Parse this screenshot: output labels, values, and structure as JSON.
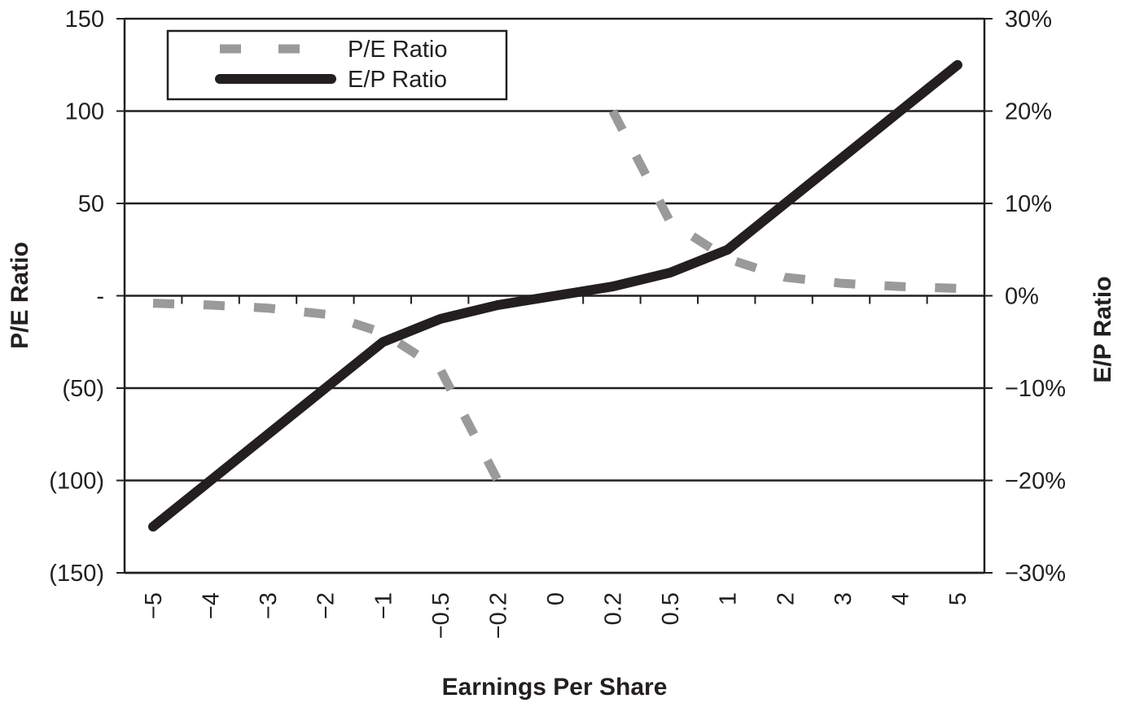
{
  "chart_data": {
    "type": "line",
    "xlabel": "Earnings Per Share",
    "ylabel_left": "P/E Ratio",
    "ylabel_right": "E/P Ratio",
    "categories": [
      "−5",
      "−4",
      "−3",
      "−2",
      "−1",
      "−0.5",
      "−0.2",
      "0",
      "0.2",
      "0.5",
      "1",
      "2",
      "3",
      "4",
      "5"
    ],
    "left_axis": {
      "range": [
        -150,
        150
      ],
      "ticks": [
        150,
        100,
        50,
        0,
        -50,
        -100,
        -150
      ],
      "tick_labels": [
        "150",
        "100",
        "50",
        "-",
        "(50)",
        "(100)",
        "(150)"
      ]
    },
    "right_axis": {
      "range": [
        -0.3,
        0.3
      ],
      "ticks": [
        0.3,
        0.2,
        0.1,
        0,
        -0.1,
        -0.2,
        -0.3
      ],
      "tick_labels": [
        "30%",
        "20%",
        "10%",
        "0%",
        "−10%",
        "−20%",
        "−30%"
      ]
    },
    "grid": "horizontal",
    "legend_position": "top-left",
    "series": [
      {
        "name": "P/E Ratio",
        "axis": "left",
        "style": "dashed",
        "color": "#9a9a9a",
        "values": [
          -4,
          -5,
          -6.7,
          -10,
          -20,
          -40,
          -100,
          null,
          100,
          40,
          20,
          10,
          6.7,
          5,
          4
        ]
      },
      {
        "name": "E/P Ratio",
        "axis": "right",
        "style": "solid",
        "color": "#231f20",
        "values": [
          -0.25,
          -0.2,
          -0.15,
          -0.1,
          -0.05,
          -0.025,
          -0.01,
          0,
          0.01,
          0.025,
          0.05,
          0.1,
          0.15,
          0.2,
          0.25
        ]
      }
    ]
  }
}
